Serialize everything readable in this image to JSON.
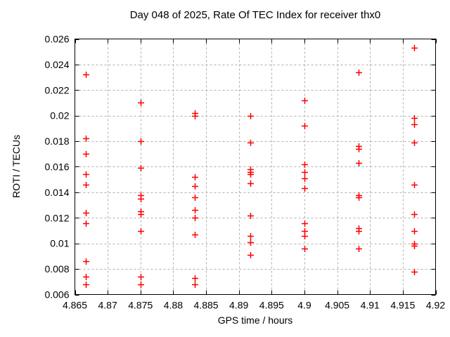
{
  "chart_data": {
    "type": "scatter",
    "title": "Day 048 of 2025, Rate Of TEC Index for receiver thx0",
    "xlabel": "GPS time / hours",
    "ylabel": "ROTI / TECUs",
    "xlim": [
      4.865,
      4.92
    ],
    "ylim": [
      0.006,
      0.026
    ],
    "xticks": [
      4.865,
      4.87,
      4.875,
      4.88,
      4.885,
      4.89,
      4.895,
      4.9,
      4.905,
      4.91,
      4.915,
      4.92
    ],
    "xtick_labels": [
      "4.865",
      "4.87",
      "4.875",
      "4.88",
      "4.885",
      "4.89",
      "4.895",
      "4.9",
      "4.905",
      "4.91",
      "4.915",
      "4.92"
    ],
    "yticks": [
      0.006,
      0.008,
      0.01,
      0.012,
      0.014,
      0.016,
      0.018,
      0.02,
      0.022,
      0.024,
      0.026
    ],
    "ytick_labels": [
      "0.006",
      "0.008",
      "0.01",
      "0.012",
      "0.014",
      "0.016",
      "0.018",
      "0.02",
      "0.022",
      "0.024",
      "0.026"
    ],
    "grid": true,
    "legend": "none",
    "marker": "plus",
    "marker_color": "#ff0000",
    "grid_color": "#b0b0b0",
    "border_color": "#000000",
    "series": [
      {
        "name": "ROTI",
        "groups": [
          {
            "gps_time": 4.8667,
            "roti_values": [
              0.0232,
              0.0182,
              0.017,
              0.0154,
              0.0146,
              0.0124,
              0.0116,
              0.0086,
              0.0074,
              0.0068
            ]
          },
          {
            "gps_time": 4.875,
            "roti_values": [
              0.021,
              0.018,
              0.0159,
              0.0138,
              0.0135,
              0.0125,
              0.0123,
              0.011,
              0.0074,
              0.0068
            ]
          },
          {
            "gps_time": 4.8833,
            "roti_values": [
              0.0202,
              0.02,
              0.0152,
              0.0145,
              0.0136,
              0.0126,
              0.012,
              0.0107,
              0.0073,
              0.0068
            ]
          },
          {
            "gps_time": 4.8917,
            "roti_values": [
              0.02,
              0.0179,
              0.0158,
              0.0156,
              0.0154,
              0.0147,
              0.0122,
              0.0106,
              0.0101,
              0.0091
            ]
          },
          {
            "gps_time": 4.9,
            "roti_values": [
              0.0212,
              0.0192,
              0.0162,
              0.0156,
              0.0151,
              0.0143,
              0.0116,
              0.011,
              0.0106,
              0.0096
            ]
          },
          {
            "gps_time": 4.9083,
            "roti_values": [
              0.0234,
              0.0176,
              0.0174,
              0.0163,
              0.0138,
              0.0136,
              0.0112,
              0.011,
              0.0096
            ]
          },
          {
            "gps_time": 4.9167,
            "roti_values": [
              0.0253,
              0.0198,
              0.0193,
              0.0179,
              0.0146,
              0.0123,
              0.011,
              0.01,
              0.0098,
              0.0078
            ]
          }
        ]
      }
    ]
  }
}
